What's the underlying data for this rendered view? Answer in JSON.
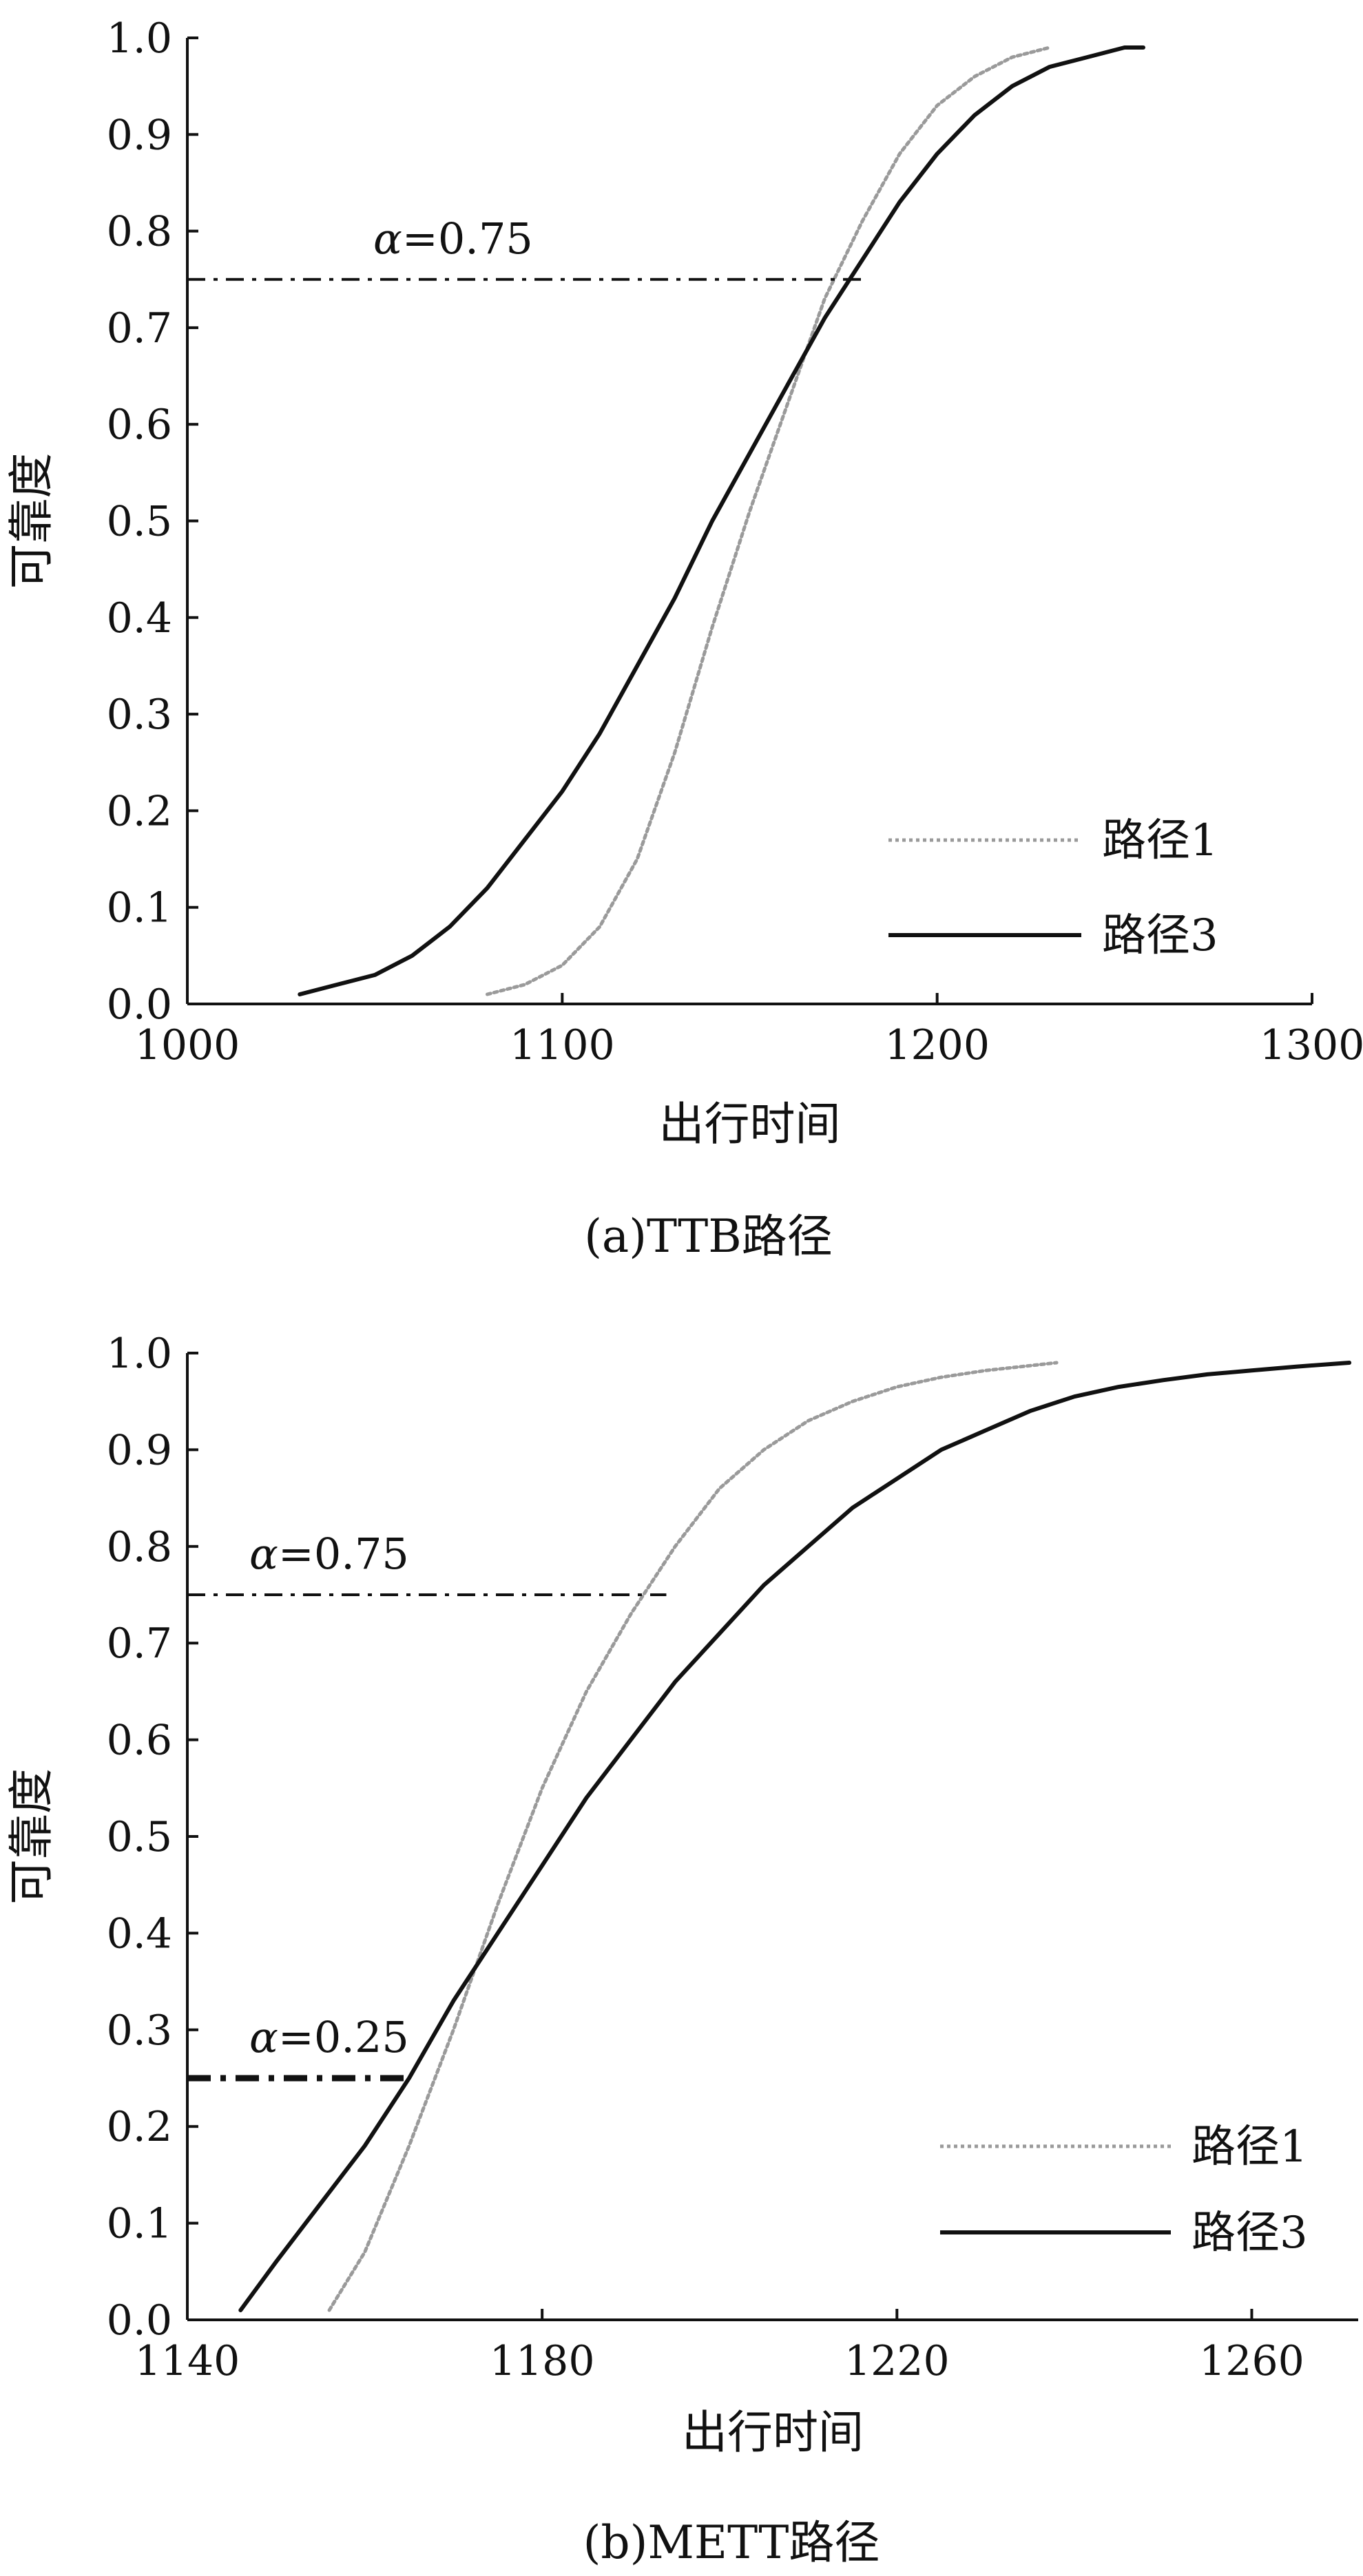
{
  "chart_data": [
    {
      "type": "line",
      "caption": "(a)TTB路径",
      "xlabel": "出行时间",
      "ylabel": "可靠度",
      "xlim": [
        1000,
        1300
      ],
      "ylim": [
        0.0,
        1.0
      ],
      "xticks": [
        "1000",
        "1100",
        "1200",
        "1300"
      ],
      "yticks": [
        "0.0",
        "0.1",
        "0.2",
        "0.3",
        "0.4",
        "0.5",
        "0.6",
        "0.7",
        "0.8",
        "0.9",
        "1.0"
      ],
      "grid": false,
      "legend_position": "bottom-right",
      "series": [
        {
          "name": "路径1",
          "style": "dotted",
          "color": "#9a9a9a",
          "x": [
            1080,
            1090,
            1100,
            1110,
            1120,
            1130,
            1140,
            1150,
            1160,
            1170,
            1180,
            1190,
            1200,
            1210,
            1220,
            1230
          ],
          "y": [
            0.01,
            0.02,
            0.04,
            0.08,
            0.15,
            0.26,
            0.39,
            0.51,
            0.62,
            0.73,
            0.81,
            0.88,
            0.93,
            0.96,
            0.98,
            0.99
          ]
        },
        {
          "name": "路径3",
          "style": "solid",
          "color": "#111111",
          "x": [
            1030,
            1040,
            1050,
            1060,
            1070,
            1080,
            1090,
            1100,
            1110,
            1120,
            1130,
            1140,
            1150,
            1160,
            1170,
            1180,
            1190,
            1200,
            1210,
            1220,
            1230,
            1240,
            1250,
            1255
          ],
          "y": [
            0.01,
            0.02,
            0.03,
            0.05,
            0.08,
            0.12,
            0.17,
            0.22,
            0.28,
            0.35,
            0.42,
            0.5,
            0.57,
            0.64,
            0.71,
            0.77,
            0.83,
            0.88,
            0.92,
            0.95,
            0.97,
            0.98,
            0.99,
            0.99
          ]
        }
      ],
      "annotations": [
        {
          "label": "α=0.75",
          "y": 0.75,
          "x_from": 1000,
          "x_to": 1180,
          "style": "dashdot",
          "weight": "thin"
        }
      ]
    },
    {
      "type": "line",
      "caption": "(b)METT路径",
      "xlabel": "出行时间",
      "ylabel": "可靠度",
      "xlim": [
        1140,
        1272
      ],
      "ylim": [
        0.0,
        1.0
      ],
      "xticks": [
        "1140",
        "1180",
        "1220",
        "1260"
      ],
      "yticks": [
        "0.0",
        "0.1",
        "0.2",
        "0.3",
        "0.4",
        "0.5",
        "0.6",
        "0.7",
        "0.8",
        "0.9",
        "1.0"
      ],
      "grid": false,
      "legend_position": "bottom-right",
      "series": [
        {
          "name": "路径1",
          "style": "dotted",
          "color": "#9a9a9a",
          "x": [
            1156,
            1160,
            1165,
            1170,
            1175,
            1180,
            1185,
            1190,
            1195,
            1200,
            1205,
            1210,
            1215,
            1220,
            1225,
            1230,
            1235,
            1238
          ],
          "y": [
            0.01,
            0.07,
            0.18,
            0.3,
            0.43,
            0.55,
            0.65,
            0.73,
            0.8,
            0.86,
            0.9,
            0.93,
            0.95,
            0.965,
            0.975,
            0.982,
            0.987,
            0.99
          ]
        },
        {
          "name": "路径3",
          "style": "solid",
          "color": "#111111",
          "x": [
            1146,
            1150,
            1155,
            1160,
            1165,
            1170,
            1175,
            1180,
            1185,
            1190,
            1195,
            1200,
            1205,
            1210,
            1215,
            1220,
            1225,
            1230,
            1235,
            1240,
            1245,
            1250,
            1255,
            1260,
            1265,
            1271
          ],
          "y": [
            0.01,
            0.06,
            0.12,
            0.18,
            0.25,
            0.33,
            0.4,
            0.47,
            0.54,
            0.6,
            0.66,
            0.71,
            0.76,
            0.8,
            0.84,
            0.87,
            0.9,
            0.92,
            0.94,
            0.955,
            0.965,
            0.972,
            0.978,
            0.982,
            0.986,
            0.99
          ]
        }
      ],
      "annotations": [
        {
          "label": "α=0.75",
          "y": 0.75,
          "x_from": 1140,
          "x_to": 1194,
          "style": "dashdot",
          "weight": "thin"
        },
        {
          "label": "α=0.25",
          "y": 0.25,
          "x_from": 1140,
          "x_to": 1165,
          "style": "dashdot",
          "weight": "bold"
        }
      ]
    }
  ]
}
